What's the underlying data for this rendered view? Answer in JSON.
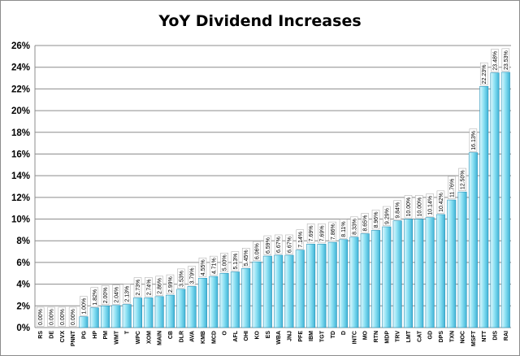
{
  "chart_data": {
    "type": "bar",
    "title": "YoY Dividend Increases",
    "xlabel": "",
    "ylabel": "",
    "ylim": [
      0,
      26
    ],
    "ytick_step": 2,
    "y_tick_format": "{v}%",
    "grid": true,
    "legend": "none",
    "colors": {
      "bar_fill_light": "#e0f7fc",
      "bar_fill_mid": "#8fe2f4",
      "bar_fill_dark": "#3fb3d6",
      "bar_stroke": "#2a93b8",
      "grid": "#8c8c8c",
      "label_box_stroke": "#a6a6a6"
    },
    "categories": [
      "RS",
      "DE",
      "CVX",
      "PNNT",
      "PG",
      "HP",
      "PM",
      "WMT",
      "T",
      "WPC",
      "XOM",
      "MAIN",
      "CB",
      "DLR",
      "AVA",
      "KMB",
      "MCD",
      "O",
      "AFL",
      "OHI",
      "KO",
      "ES",
      "WBA",
      "JNJ",
      "PFE",
      "IBM",
      "TGT",
      "TD",
      "D",
      "INTC",
      "MO",
      "RTN",
      "MDP",
      "TRV",
      "LMT",
      "CAT",
      "GD",
      "DPS",
      "TXN",
      "NOC",
      "MSFT",
      "NTT",
      "DIS",
      "RAI"
    ],
    "values": [
      0.0,
      0.0,
      0.0,
      0.0,
      1.0,
      1.82,
      2.0,
      2.04,
      2.13,
      2.73,
      2.74,
      2.86,
      2.99,
      3.53,
      3.79,
      4.55,
      4.71,
      5.0,
      5.13,
      5.45,
      6.06,
      6.59,
      6.67,
      6.67,
      7.14,
      7.69,
      7.69,
      7.86,
      8.11,
      8.33,
      8.65,
      8.96,
      9.29,
      9.84,
      10.0,
      10.0,
      10.14,
      10.42,
      11.76,
      12.5,
      16.13,
      22.23,
      23.48,
      23.53
    ],
    "data_labels": [
      "0.00%",
      "0.00%",
      "0.00%",
      "0.00%",
      "1.00%",
      "1.82%",
      "2.00%",
      "2.04%",
      "2.13%",
      "2.73%",
      "2.74%",
      "2.86%",
      "2.99%",
      "3.53%",
      "3.79%",
      "4.55%",
      "4.71%",
      "5.00%",
      "5.13%",
      "5.45%",
      "6.06%",
      "6.59%",
      "6.67%",
      "6.67%",
      "7.14%",
      "7.69%",
      "7.69%",
      "7.86%",
      "8.11%",
      "8.33%",
      "8.65%",
      "8.96%",
      "9.29%",
      "9.84%",
      "10.00%",
      "10.00%",
      "10.14%",
      "10.42%",
      "11.76%",
      "12.50%",
      "16.13%",
      "22.23%",
      "23.48%",
      "23.53%"
    ]
  }
}
